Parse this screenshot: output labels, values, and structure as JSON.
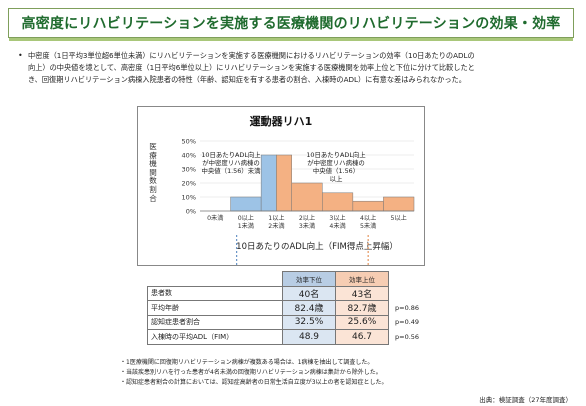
{
  "title": "高密度にリハビリテーションを実施する医療機関のリハビリテーションの効果・効率",
  "summary": {
    "bullet": "•",
    "line1": "中密度（1日平均3単位超6単位未満）にリハビリテーションを実施する医療機関におけるリハビリテーションの効率（10日あたりのADLの",
    "line2": "向上）の中央値を境として、高密度（1日平均6単位以上）にリハビリテーションを実施する医療機関を効率上位と下位に分けて比較したと",
    "line3": "き、回復期リハビリテーション病棟入院患者の特性（年齢、認知症を有する患者の割合、入棟時のADL）に有意な差はみられなかった。"
  },
  "chart_data": {
    "type": "bar",
    "title": "運動器リハ1",
    "ylabel": "医療機関数割合",
    "xlabel": "10日あたりのADL向上（FIM得点上昇幅）",
    "categories": [
      "0未満",
      "0以上\n1未満",
      "1以上\n2未満",
      "2以上\n3未満",
      "3以上\n4未満",
      "4以上\n5未満",
      "5以上"
    ],
    "values": [
      0,
      10,
      40,
      20,
      13,
      7,
      10
    ],
    "ylim": [
      0,
      50
    ],
    "yticks": [
      "0%",
      "10%",
      "20%",
      "30%",
      "40%",
      "50%"
    ],
    "groups": [
      {
        "name": "効率下位",
        "categories": [
          "0以上\n1未満",
          "1以上\n2未満"
        ],
        "color": "#9dc3e6"
      },
      {
        "name": "効率上位",
        "categories": [
          "1以上\n2未満",
          "2以上\n3未満",
          "3以上\n4未満",
          "4以上\n5未満",
          "5以上"
        ],
        "color": "#f4b183"
      }
    ],
    "annotations": {
      "left": "10日あたりADL向上\nが中密度リハ病棟の\n中央値（1.56）未満",
      "right": "10日あたりADL向上\nが中密度リハ病棟の\n中央値（1.56）\n以上"
    }
  },
  "table": {
    "headers": [
      "効率下位",
      "効率上位"
    ],
    "rows": [
      {
        "label": "患者数",
        "low": "40名",
        "up": "43名",
        "p": ""
      },
      {
        "label": "平均年齢",
        "low": "82.4歳",
        "up": "82.7歳",
        "p": "p=0.86"
      },
      {
        "label": "認知症患者割合",
        "low": "32.5%",
        "up": "25.6%",
        "p": "p=0.49"
      },
      {
        "label": "入棟時の平均ADL（FIM）",
        "low": "48.9",
        "up": "46.7",
        "p": "p=0.56"
      }
    ]
  },
  "notes": [
    "・1医療機関に回復期リハビリテーション病棟が複数ある場合は、1病棟を抽出して調査した。",
    "・当該疾患別リハを行った患者が4名未満の回復期リハビリテーション病棟は集計から除外した。",
    "・認知症患者割合の計算においては、認知症高齢者の日常生活自立度が3以上の者を認知症とした。"
  ],
  "source": "出典：検証調査（27年度調査）"
}
